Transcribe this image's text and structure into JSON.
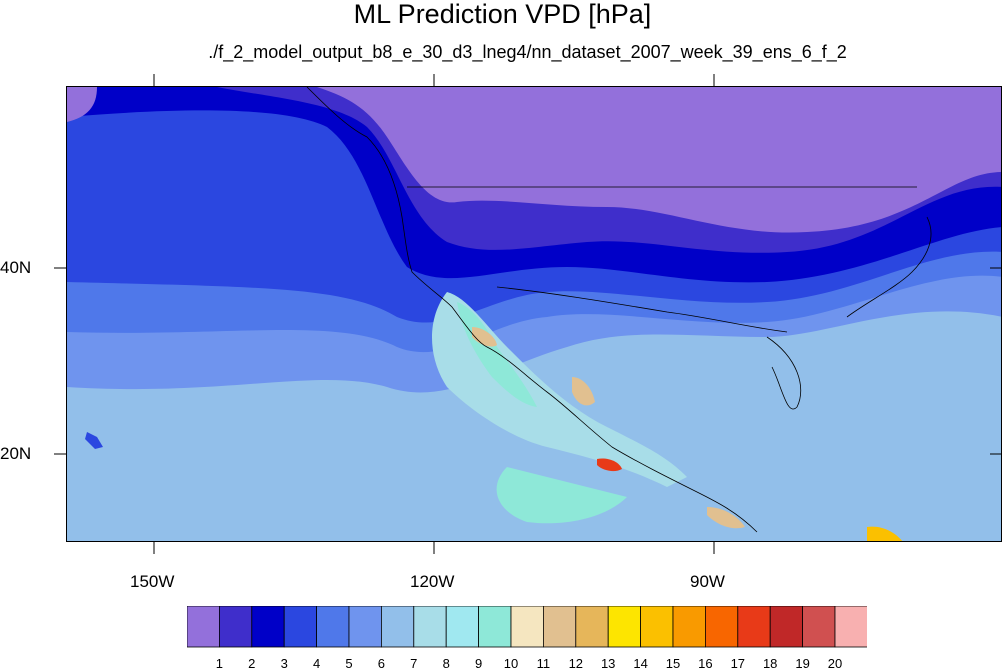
{
  "title": "ML Prediction VPD [hPa]",
  "subtitle": "./f_2_model_output_b8_e_30_d3_lneg4/nn_dataset_2007_week_39_ens_6_f_2",
  "axes": {
    "x_ticks": [
      "150W",
      "120W",
      "90W"
    ],
    "y_ticks": [
      "40N",
      "20N"
    ]
  },
  "colorbar": {
    "labels": [
      "1",
      "2",
      "3",
      "4",
      "5",
      "6",
      "7",
      "8",
      "9",
      "10",
      "11",
      "12",
      "13",
      "14",
      "15",
      "16",
      "17",
      "18",
      "19",
      "20"
    ],
    "colors": [
      "#9370db",
      "#3f2ecb",
      "#0000c8",
      "#2b47e0",
      "#4f78ea",
      "#6f94ee",
      "#92bfea",
      "#a8dde8",
      "#a0e8f0",
      "#8ee8d8",
      "#f5e6c0",
      "#e1c090",
      "#e6b65a",
      "#fde500",
      "#fbc000",
      "#f99a00",
      "#f86600",
      "#e83a18",
      "#c02828",
      "#d05050",
      "#f8b0b0"
    ]
  },
  "regions": {
    "tick_labels_note": ""
  }
}
